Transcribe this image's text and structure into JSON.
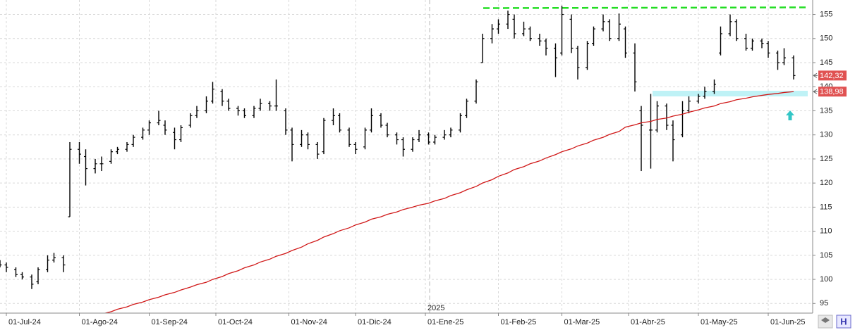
{
  "chart_data": {
    "type": "ohlc",
    "x": [
      "2024-06-27",
      "2024-07-01",
      "2024-07-04",
      "2024-07-08",
      "2024-07-11",
      "2024-07-15",
      "2024-07-18",
      "2024-07-22",
      "2024-07-25",
      "2024-07-29",
      "2024-08-01",
      "2024-08-05",
      "2024-08-08",
      "2024-08-12",
      "2024-08-15",
      "2024-08-19",
      "2024-08-22",
      "2024-08-26",
      "2024-08-29",
      "2024-09-02",
      "2024-09-05",
      "2024-09-09",
      "2024-09-12",
      "2024-09-16",
      "2024-09-19",
      "2024-09-23",
      "2024-09-26",
      "2024-09-30",
      "2024-10-03",
      "2024-10-07",
      "2024-10-10",
      "2024-10-14",
      "2024-10-17",
      "2024-10-21",
      "2024-10-24",
      "2024-10-28",
      "2024-10-31",
      "2024-11-04",
      "2024-11-07",
      "2024-11-11",
      "2024-11-14",
      "2024-11-18",
      "2024-11-21",
      "2024-11-25",
      "2024-11-28",
      "2024-12-02",
      "2024-12-05",
      "2024-12-09",
      "2024-12-12",
      "2024-12-16",
      "2024-12-19",
      "2024-12-23",
      "2024-12-26",
      "2024-12-30",
      "2025-01-02",
      "2025-01-06",
      "2025-01-09",
      "2025-01-13",
      "2025-01-16",
      "2025-01-20",
      "2025-01-23",
      "2025-01-27",
      "2025-01-30",
      "2025-02-03",
      "2025-02-06",
      "2025-02-10",
      "2025-02-13",
      "2025-02-17",
      "2025-02-20",
      "2025-02-24",
      "2025-02-27",
      "2025-03-03",
      "2025-03-06",
      "2025-03-10",
      "2025-03-13",
      "2025-03-17",
      "2025-03-20",
      "2025-03-24",
      "2025-03-27",
      "2025-03-31",
      "2025-04-03",
      "2025-04-07",
      "2025-04-10",
      "2025-04-14",
      "2025-04-17",
      "2025-04-21",
      "2025-04-24",
      "2025-04-28",
      "2025-05-01",
      "2025-05-05",
      "2025-05-08",
      "2025-05-12",
      "2025-05-15",
      "2025-05-19",
      "2025-05-22",
      "2025-05-26",
      "2025-05-29",
      "2025-06-02",
      "2025-06-05",
      "2025-06-09",
      "2025-06-12"
    ],
    "open": [
      103.5,
      103,
      102,
      101,
      100.5,
      99.5,
      102,
      104,
      104.5,
      113,
      127,
      125.5,
      123,
      124,
      124.5,
      126.5,
      127,
      128,
      129.5,
      131,
      132.5,
      132,
      130.5,
      129,
      132,
      134,
      135,
      137,
      139,
      137,
      135.5,
      135,
      134,
      135.5,
      136.5,
      136,
      135,
      131,
      128,
      130,
      128,
      126.5,
      133,
      134,
      131,
      128,
      127.5,
      131,
      134,
      132,
      130,
      129,
      127,
      129,
      130,
      128.5,
      129.5,
      130,
      131,
      134,
      137,
      145,
      150,
      152,
      153,
      154,
      151,
      152,
      150,
      149.5,
      148,
      147,
      154,
      148,
      144,
      149,
      152,
      153.5,
      150,
      152,
      147,
      135,
      131,
      131,
      136,
      132,
      130,
      135,
      137,
      138,
      139,
      147,
      151,
      153.5,
      150,
      148,
      149.5,
      149,
      147,
      145,
      146
    ],
    "high": [
      104,
      103.5,
      102.5,
      101.5,
      101,
      102.5,
      105,
      105.5,
      105,
      128.5,
      128.5,
      127,
      125,
      125.5,
      127,
      127.5,
      128.5,
      130,
      131.5,
      133,
      135,
      133,
      131.5,
      132,
      134.5,
      136,
      138,
      141,
      139.5,
      137.5,
      136,
      135.5,
      136,
      137.5,
      137,
      141.5,
      135.5,
      131.5,
      131,
      130.5,
      128.5,
      133.5,
      135.5,
      134.5,
      131.5,
      128.5,
      131.5,
      135.5,
      134.5,
      132.5,
      130.5,
      129.5,
      129.5,
      131,
      130.5,
      130,
      131,
      131.5,
      134.5,
      137.5,
      141.5,
      151,
      153,
      154,
      155.8,
      155,
      153.5,
      152.5,
      151,
      150,
      149,
      156.8,
      155,
      148.5,
      149.5,
      152.5,
      155,
      154,
      155.2,
      152.5,
      149,
      136,
      138.5,
      137,
      136.5,
      133,
      137,
      138,
      138.5,
      140,
      141.5,
      152.5,
      155,
      154,
      151,
      150,
      150,
      149.5,
      147.5,
      148,
      146.5
    ],
    "low": [
      102.5,
      101.5,
      100.5,
      100,
      98,
      99,
      101.5,
      103.5,
      101.5,
      113,
      124,
      119.5,
      122,
      122.5,
      124,
      126,
      126.5,
      127.5,
      129,
      130,
      132,
      130,
      127,
      128.5,
      131.5,
      133.5,
      134.5,
      136.5,
      136,
      135,
      134,
      133.5,
      133.5,
      135,
      135,
      135,
      130,
      124.5,
      127.5,
      127,
      125,
      126,
      132,
      130.5,
      127.5,
      126,
      127,
      130.5,
      131.5,
      129.5,
      128,
      125.5,
      126.5,
      128.5,
      128,
      128,
      129,
      129.5,
      130.5,
      133.5,
      136.5,
      145,
      149,
      151,
      152,
      150,
      150.5,
      149.5,
      148.5,
      146.5,
      142,
      146.5,
      147,
      141.5,
      143.5,
      148.5,
      151.5,
      149.5,
      149.5,
      146,
      139,
      122.5,
      123,
      130.5,
      131,
      124.5,
      129.5,
      134.5,
      136.5,
      137.5,
      138.5,
      146.5,
      150.5,
      149.5,
      147.5,
      147.5,
      148,
      146,
      143.5,
      144.5,
      141.5
    ],
    "close": [
      103,
      102.5,
      101,
      100.5,
      99,
      102,
      104,
      104.5,
      103,
      127,
      126,
      123,
      124,
      124,
      126.5,
      127,
      128,
      129.5,
      131,
      132.5,
      133,
      131,
      129,
      131.5,
      134,
      135,
      137,
      139.5,
      137,
      135.5,
      135,
      134,
      135.5,
      136.5,
      136,
      136,
      131,
      128,
      130,
      128,
      126,
      133,
      134,
      131,
      128,
      127,
      131,
      134,
      132,
      130,
      129,
      127,
      129,
      130,
      128.5,
      129.5,
      130,
      131,
      134,
      137,
      141,
      150,
      152,
      153,
      155,
      151,
      152,
      150,
      149.5,
      148,
      146,
      155,
      148,
      144,
      149,
      152,
      153.5,
      150,
      153,
      147,
      141,
      132,
      131,
      136,
      132,
      129,
      135,
      137,
      138,
      139,
      140.5,
      151,
      153.5,
      150,
      148,
      149.5,
      149,
      147,
      145,
      146,
      142.32
    ],
    "color": "#000000",
    "moving_average": {
      "color": "#d01818",
      "values": [
        null,
        null,
        null,
        null,
        null,
        null,
        null,
        null,
        null,
        null,
        null,
        null,
        92.3,
        92.8,
        93.3,
        93.8,
        94.3,
        94.8,
        95.3,
        95.8,
        96.3,
        96.8,
        97.3,
        97.8,
        98.4,
        98.9,
        99.4,
        100,
        100.6,
        101.2,
        101.8,
        102.4,
        103,
        103.6,
        104.2,
        104.8,
        105.4,
        106,
        106.7,
        107.4,
        108.1,
        108.8,
        109.5,
        110.1,
        110.7,
        111.3,
        111.9,
        112.5,
        113,
        113.5,
        114,
        114.5,
        115,
        115.4,
        115.8,
        116.3,
        116.8,
        117.4,
        118,
        118.6,
        119.3,
        120,
        120.7,
        121.4,
        122.1,
        122.8,
        123.4,
        124,
        124.6,
        125.2,
        125.9,
        126.5,
        127.1,
        127.7,
        128.3,
        128.9,
        129.5,
        130.1,
        130.7,
        131.6,
        132.1,
        132.5,
        132.8,
        133.2,
        133.5,
        133.9,
        134.3,
        134.7,
        135.2,
        135.6,
        136,
        136.5,
        136.9,
        137.3,
        137.6,
        137.9,
        138.2,
        138.4,
        138.6,
        138.8,
        138.98
      ]
    },
    "xlim": [
      "2024-06-27",
      "2025-06-20"
    ],
    "xticks": [
      {
        "value": "2024-07-01",
        "label": "01-Jul-24"
      },
      {
        "value": "2024-08-01",
        "label": "01-Ago-24"
      },
      {
        "value": "2024-09-02",
        "label": "01-Sep-24"
      },
      {
        "value": "2024-10-01",
        "label": "01-Oct-24"
      },
      {
        "value": "2024-11-01",
        "label": "01-Nov-24"
      },
      {
        "value": "2024-12-02",
        "label": "01-Dic-24"
      },
      {
        "value": "2025-01-01",
        "label": "01-Ene-25"
      },
      {
        "value": "2025-02-03",
        "label": "01-Feb-25"
      },
      {
        "value": "2025-03-03",
        "label": "01-Mar-25"
      },
      {
        "value": "2025-04-01",
        "label": "01-Abr-25"
      },
      {
        "value": "2025-05-01",
        "label": "01-May-25"
      },
      {
        "value": "2025-06-02",
        "label": "01-Jun-25"
      }
    ],
    "year_label": "2025",
    "ylim": [
      93,
      158
    ],
    "yticks": [
      95,
      100,
      105,
      110,
      115,
      120,
      125,
      130,
      135,
      140,
      145,
      150,
      155
    ],
    "grid": true,
    "price_tags": [
      {
        "value": 142.32,
        "label": "142,32",
        "color": "#e05252"
      },
      {
        "value": 138.98,
        "label": "138,98",
        "color": "#e05252"
      }
    ]
  }
}
